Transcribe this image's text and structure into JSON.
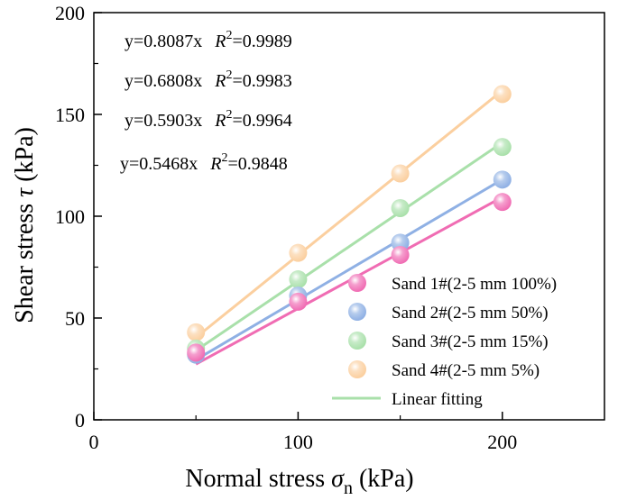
{
  "chart_data": {
    "type": "scatter",
    "title": "",
    "xlabel": {
      "main": "Normal stress ",
      "symbol": "σ",
      "sub": "n",
      "unit": " (kPa)"
    },
    "ylabel": {
      "main": "Shear stress ",
      "symbol": "τ",
      "unit": " (kPa)"
    },
    "xlim": [
      0,
      250
    ],
    "ylim": [
      0,
      200
    ],
    "x_ticks": [
      0,
      100,
      200
    ],
    "y_ticks": [
      0,
      50,
      100,
      150,
      200
    ],
    "grid": false,
    "legend_position": "bottom-right",
    "series": [
      {
        "name": "Sand 1#(2-5 mm 100%)",
        "color": "#f06cb3",
        "x": [
          50,
          100,
          150,
          200
        ],
        "y": [
          33,
          58,
          81,
          107
        ],
        "fit_slope": 0.5468,
        "fit_label": "y=0.5468x",
        "r2_label": "=0.9848"
      },
      {
        "name": "Sand 2#(2-5 mm 50%)",
        "color": "#8fb0e4",
        "x": [
          50,
          100,
          150,
          200
        ],
        "y": [
          32,
          61,
          87,
          118
        ],
        "fit_slope": 0.5903,
        "fit_label": "y=0.5903x",
        "r2_label": "=0.9964"
      },
      {
        "name": "Sand 3#(2-5 mm 15%)",
        "color": "#a9e0aa",
        "x": [
          50,
          100,
          150,
          200
        ],
        "y": [
          35,
          69,
          104,
          134
        ],
        "fit_slope": 0.6808,
        "fit_label": "y=0.6808x",
        "r2_label": "=0.9983"
      },
      {
        "name": "Sand 4#(2-5 mm 5%)",
        "color": "#fbcf9f",
        "x": [
          50,
          100,
          150,
          200
        ],
        "y": [
          43,
          82,
          121,
          160
        ],
        "fit_slope": 0.8087,
        "fit_label": "y=0.8087x",
        "r2_label": "=0.9989"
      }
    ],
    "fit_legend": {
      "label": "Linear fitting",
      "color": "#a9e0aa"
    },
    "annotations": [
      {
        "equation": "y=0.8087x",
        "r2": "=0.9989"
      },
      {
        "equation": "y=0.6808x",
        "r2": "=0.9983"
      },
      {
        "equation": "y=0.5903x",
        "r2": "=0.9964"
      },
      {
        "equation": "y=0.5468x",
        "r2": "=0.9848"
      }
    ],
    "r2_symbol": "R",
    "r2_superscript": "2"
  }
}
